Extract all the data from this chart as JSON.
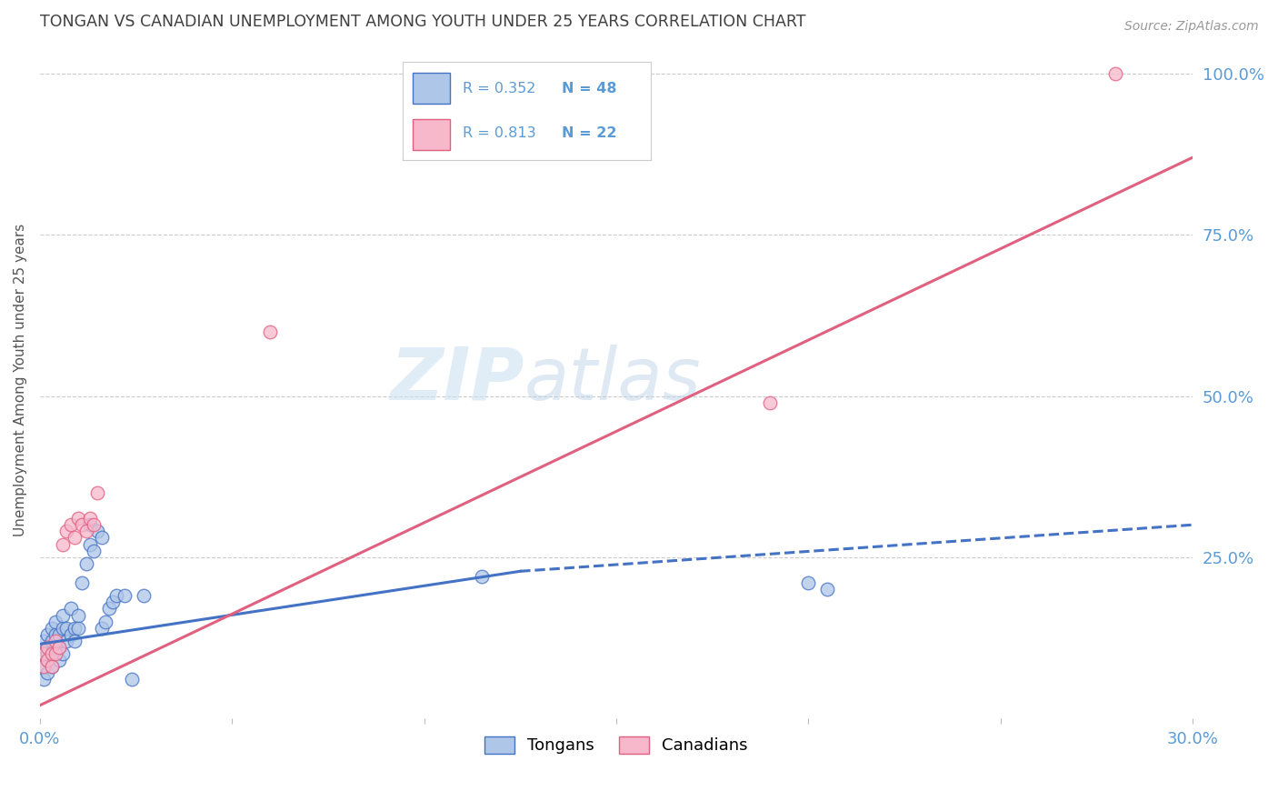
{
  "title": "TONGAN VS CANADIAN UNEMPLOYMENT AMONG YOUTH UNDER 25 YEARS CORRELATION CHART",
  "source": "Source: ZipAtlas.com",
  "ylabel": "Unemployment Among Youth under 25 years",
  "xlim": [
    0.0,
    0.3
  ],
  "ylim": [
    0.0,
    1.05
  ],
  "background_color": "#ffffff",
  "watermark_zip": "ZIP",
  "watermark_atlas": "atlas",
  "blue_fill": "#aec6e8",
  "blue_edge": "#4472c4",
  "pink_fill": "#f7b8cc",
  "pink_edge": "#e06080",
  "blue_line_color": "#4472c4",
  "pink_line_color": "#e06080",
  "axis_label_color": "#5b9bd5",
  "title_color": "#404040",
  "grid_color": "#cccccc",
  "tongans_x": [
    0.001,
    0.001,
    0.001,
    0.001,
    0.002,
    0.002,
    0.002,
    0.002,
    0.002,
    0.003,
    0.003,
    0.003,
    0.003,
    0.004,
    0.004,
    0.004,
    0.005,
    0.005,
    0.005,
    0.006,
    0.006,
    0.006,
    0.007,
    0.007,
    0.008,
    0.008,
    0.009,
    0.009,
    0.01,
    0.01,
    0.011,
    0.012,
    0.013,
    0.013,
    0.014,
    0.015,
    0.016,
    0.016,
    0.017,
    0.018,
    0.019,
    0.02,
    0.022,
    0.024,
    0.027,
    0.115,
    0.2,
    0.205
  ],
  "tongans_y": [
    0.1,
    0.08,
    0.12,
    0.06,
    0.11,
    0.09,
    0.13,
    0.07,
    0.1,
    0.12,
    0.08,
    0.14,
    0.1,
    0.13,
    0.11,
    0.15,
    0.09,
    0.13,
    0.11,
    0.14,
    0.1,
    0.16,
    0.12,
    0.14,
    0.13,
    0.17,
    0.14,
    0.12,
    0.16,
    0.14,
    0.21,
    0.24,
    0.27,
    0.3,
    0.26,
    0.29,
    0.28,
    0.14,
    0.15,
    0.17,
    0.18,
    0.19,
    0.19,
    0.06,
    0.19,
    0.22,
    0.21,
    0.2
  ],
  "canadians_x": [
    0.001,
    0.001,
    0.002,
    0.002,
    0.003,
    0.003,
    0.004,
    0.004,
    0.005,
    0.006,
    0.007,
    0.008,
    0.009,
    0.01,
    0.011,
    0.012,
    0.013,
    0.014,
    0.015,
    0.06,
    0.19,
    0.28
  ],
  "canadians_y": [
    0.08,
    0.1,
    0.09,
    0.11,
    0.1,
    0.08,
    0.12,
    0.1,
    0.11,
    0.27,
    0.29,
    0.3,
    0.28,
    0.31,
    0.3,
    0.29,
    0.31,
    0.3,
    0.35,
    0.6,
    0.49,
    1.0
  ],
  "blue_line_x0": 0.0,
  "blue_line_y0": 0.115,
  "blue_line_x1": 0.125,
  "blue_line_y1": 0.228,
  "blue_line_dash_x0": 0.125,
  "blue_line_dash_y0": 0.228,
  "blue_line_dash_x1": 0.3,
  "blue_line_dash_y1": 0.3,
  "pink_line_x0": 0.0,
  "pink_line_y0": 0.02,
  "pink_line_x1": 0.3,
  "pink_line_y1": 0.87
}
